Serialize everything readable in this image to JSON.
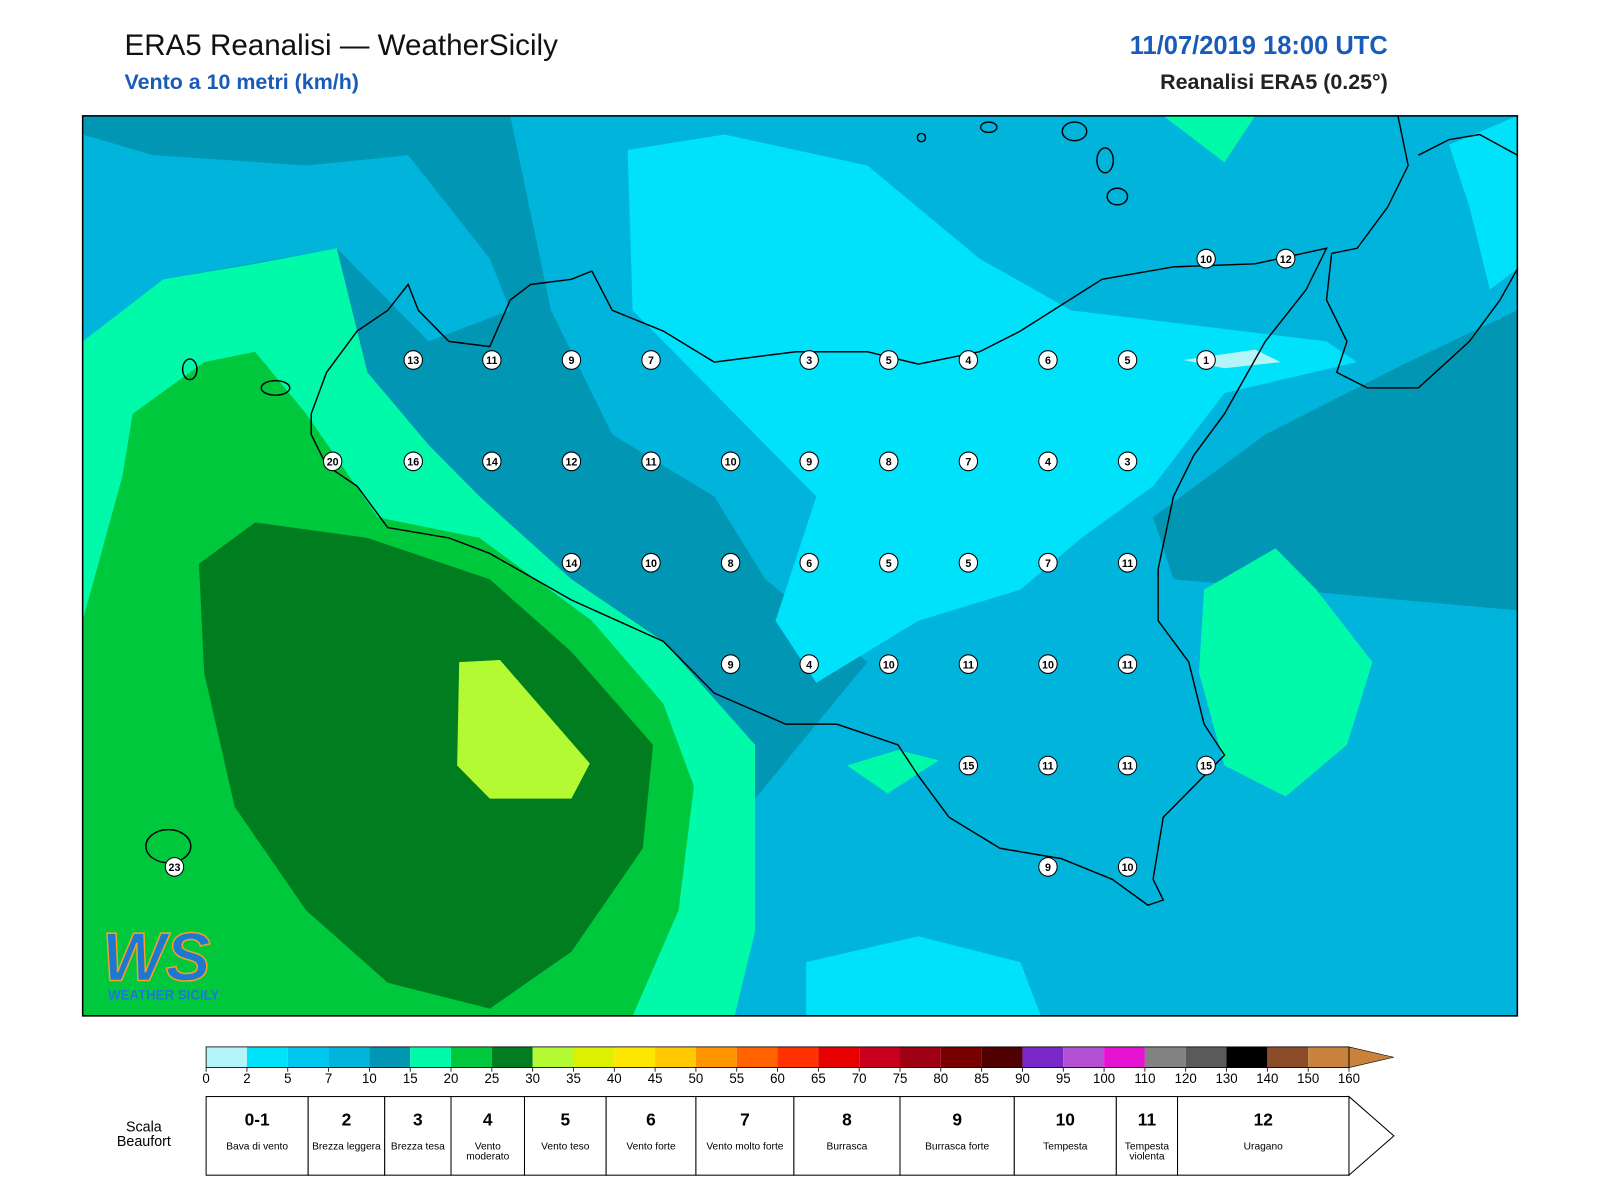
{
  "header": {
    "title": "ERA5 Reanalisi — WeatherSicily",
    "subtitle": "Vento a 10 metri (km/h)",
    "date": "11/07/2019 18:00 UTC",
    "source": "Reanalisi ERA5 (0.25°)"
  },
  "map": {
    "wind_kmh": [
      13,
      11,
      9,
      7,
      3,
      5,
      4,
      6,
      5,
      1,
      10,
      12,
      20,
      16,
      14,
      12,
      11,
      10,
      9,
      8,
      7,
      4,
      3,
      14,
      10,
      8,
      6,
      5,
      5,
      7,
      11,
      9,
      4,
      10,
      11,
      10,
      11,
      15,
      11,
      11,
      15,
      9,
      10,
      23
    ],
    "logo": {
      "mark": "WS",
      "text": "WEATHER SICILY"
    }
  },
  "colorbar": {
    "ticks": [
      0,
      2,
      5,
      7,
      10,
      15,
      20,
      25,
      30,
      35,
      40,
      45,
      50,
      55,
      60,
      65,
      70,
      75,
      80,
      85,
      90,
      95,
      100,
      110,
      120,
      130,
      140,
      150,
      160
    ],
    "colors": [
      "#b4f5fa",
      "#00e1fa",
      "#00c8f0",
      "#00b4dc",
      "#0096b4",
      "#00faaa",
      "#00c83c",
      "#007d1e",
      "#b4fa32",
      "#dcf000",
      "#ffe600",
      "#ffc800",
      "#ff9600",
      "#ff6400",
      "#ff3200",
      "#e60000",
      "#c8001e",
      "#a00014",
      "#780000",
      "#500000",
      "#7828c8",
      "#b450d2",
      "#e614d2",
      "#828282",
      "#5a5a5a",
      "#000000",
      "#8c4b28",
      "#c8823c"
    ]
  },
  "beaufort": {
    "label": "Scala Beaufort",
    "levels": [
      {
        "force": "0-1",
        "name": "Bava di vento"
      },
      {
        "force": 2,
        "name": "Brezza leggera"
      },
      {
        "force": 3,
        "name": "Brezza tesa"
      },
      {
        "force": 4,
        "name": "Vento moderato"
      },
      {
        "force": 5,
        "name": "Vento teso"
      },
      {
        "force": 6,
        "name": "Vento forte"
      },
      {
        "force": 7,
        "name": "Vento molto forte"
      },
      {
        "force": 8,
        "name": "Burrasca"
      },
      {
        "force": 9,
        "name": "Burrasca forte"
      },
      {
        "force": 10,
        "name": "Tempesta"
      },
      {
        "force": 11,
        "name": "Tempesta violenta"
      },
      {
        "force": 12,
        "name": "Uragano"
      }
    ]
  }
}
